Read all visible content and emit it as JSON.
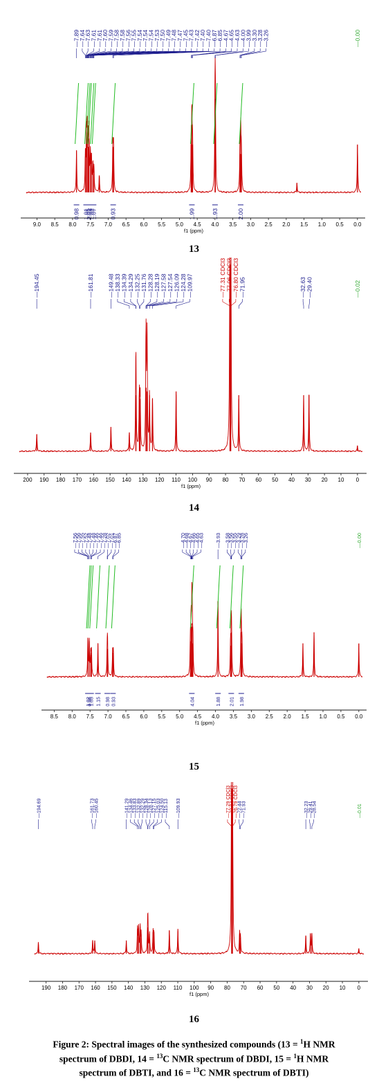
{
  "colors": {
    "spectrum": "#cc0000",
    "integral": "#22bb22",
    "peak_label": "#1a1a8c",
    "solvent_label": "#cc0000",
    "ref_label": "#33aa33",
    "axis": "#1a1a1a"
  },
  "chart_data": [
    {
      "id": "13",
      "type": "line",
      "nucleus": "1H",
      "number_label": "13",
      "xlabel": "f1 (ppm)",
      "xlim": [
        9.3,
        -0.1
      ],
      "xticks": [
        9.0,
        8.5,
        8.0,
        7.5,
        7.0,
        6.5,
        6.0,
        5.5,
        5.0,
        4.5,
        4.0,
        3.5,
        3.0,
        2.5,
        2.0,
        1.5,
        1.0,
        0.5,
        0.0
      ],
      "xtick_labels": [
        "9.0",
        "8.5",
        "8.0",
        "7.5",
        "7.0",
        "6.5",
        "6.0",
        "5.5",
        "5.0",
        "4.5",
        "4.0",
        "3.5",
        "3.0",
        "2.5",
        "2.0",
        "1.5",
        "1.0",
        "0.5",
        "0.0"
      ],
      "peak_labels": [
        "7.89",
        "7.64",
        "7.63",
        "7.61",
        "7.61",
        "7.60",
        "7.59",
        "7.58",
        "7.58",
        "7.56",
        "7.55",
        "7.54",
        "7.54",
        "7.54",
        "7.53",
        "7.50",
        "7.49",
        "7.48",
        "7.47",
        "7.45",
        "7.43",
        "7.42",
        "7.40",
        "7.40",
        "6.87",
        "6.85",
        "4.67",
        "4.65",
        "4.63",
        "4.00",
        "3.99",
        "3.30",
        "3.28",
        "3.26"
      ],
      "ref_label": "0.00",
      "peaks": [
        [
          7.89,
          0.35
        ],
        [
          7.64,
          0.3
        ],
        [
          7.61,
          0.42
        ],
        [
          7.59,
          0.5
        ],
        [
          7.56,
          0.38
        ],
        [
          7.54,
          0.45
        ],
        [
          7.5,
          0.3
        ],
        [
          7.47,
          0.28
        ],
        [
          7.43,
          0.22
        ],
        [
          7.4,
          0.2
        ],
        [
          7.25,
          0.14
        ],
        [
          6.87,
          0.38
        ],
        [
          6.85,
          0.38
        ],
        [
          4.67,
          0.4
        ],
        [
          4.65,
          0.6
        ],
        [
          4.63,
          0.4
        ],
        [
          4.0,
          0.78
        ],
        [
          3.99,
          0.6
        ],
        [
          3.3,
          0.32
        ],
        [
          3.28,
          0.52
        ],
        [
          3.26,
          0.32
        ],
        [
          1.7,
          0.08
        ],
        [
          0.0,
          0.4
        ]
      ],
      "integrals": [
        {
          "label": "0.98",
          "center": 7.89
        },
        {
          "label": "1.01",
          "center": 7.62
        },
        {
          "label": "1.05",
          "center": 7.57
        },
        {
          "label": "2.01",
          "center": 7.53
        },
        {
          "label": "1.02",
          "center": 7.46
        },
        {
          "label": "1.07",
          "center": 7.41
        },
        {
          "label": "0.93",
          "center": 6.86
        },
        {
          "label": "1.99",
          "center": 4.65
        },
        {
          "label": "1.93",
          "center": 4.0
        },
        {
          "label": "2.00",
          "center": 3.28
        }
      ]
    },
    {
      "id": "14",
      "type": "line",
      "nucleus": "13C",
      "number_label": "14",
      "xlabel": "f1 (ppm)",
      "xlim": [
        205,
        -3
      ],
      "xticks": [
        200,
        190,
        180,
        170,
        160,
        150,
        140,
        130,
        120,
        110,
        100,
        90,
        80,
        70,
        60,
        50,
        40,
        30,
        20,
        10,
        0
      ],
      "xtick_labels": [
        "200",
        "190",
        "180",
        "170",
        "160",
        "150",
        "140",
        "130",
        "120",
        "110",
        "100",
        "90",
        "80",
        "70",
        "60",
        "50",
        "40",
        "30",
        "20",
        "10",
        "0"
      ],
      "peak_labels": [
        "194.45",
        "161.81",
        "149.48",
        "138.33",
        "134.39",
        "134.29",
        "132.25",
        "131.76",
        "128.28",
        "128.19",
        "127.58",
        "127.54",
        "126.09",
        "124.28",
        "109.97",
        "77.31 CDCl3",
        "77.06 CDCl3",
        "76.80 CDCl3",
        "71.95",
        "32.63",
        "29.40"
      ],
      "solvent_labels": [
        "77.31 CDCl3",
        "77.06 CDCl3",
        "76.80 CDCl3"
      ],
      "ref_label": "0.02",
      "peaks": [
        [
          194.45,
          0.09
        ],
        [
          161.81,
          0.1
        ],
        [
          149.48,
          0.13
        ],
        [
          138.33,
          0.1
        ],
        [
          134.39,
          0.3
        ],
        [
          134.29,
          0.28
        ],
        [
          132.25,
          0.3
        ],
        [
          131.76,
          0.28
        ],
        [
          128.28,
          0.33
        ],
        [
          128.19,
          0.34
        ],
        [
          127.58,
          0.32
        ],
        [
          127.54,
          0.3
        ],
        [
          126.09,
          0.3
        ],
        [
          124.28,
          0.28
        ],
        [
          109.97,
          0.32
        ],
        [
          77.31,
          0.95
        ],
        [
          77.06,
          1.0
        ],
        [
          76.8,
          0.92
        ],
        [
          71.95,
          0.3
        ],
        [
          32.63,
          0.3
        ],
        [
          29.4,
          0.3
        ],
        [
          0.0,
          0.03
        ]
      ]
    },
    {
      "id": "15",
      "type": "line",
      "nucleus": "1H",
      "number_label": "15",
      "xlabel": "f1 (ppm)",
      "xlim": [
        8.7,
        -0.1
      ],
      "xticks": [
        8.5,
        8.0,
        7.5,
        7.0,
        6.5,
        6.0,
        5.5,
        5.0,
        4.5,
        4.0,
        3.5,
        3.0,
        2.5,
        2.0,
        1.5,
        1.0,
        0.5,
        0.0
      ],
      "xtick_labels": [
        "8.5",
        "8.0",
        "7.5",
        "7.0",
        "6.5",
        "6.0",
        "5.5",
        "5.0",
        "4.5",
        "4.0",
        "3.5",
        "3.0",
        "2.5",
        "2.0",
        "1.5",
        "1.0",
        "0.5",
        "0.0"
      ],
      "peak_labels": [
        "7.56",
        "7.56",
        "7.55",
        "7.52",
        "7.48",
        "7.48",
        "7.46",
        "7.46",
        "7.28",
        "7.02",
        "7.01",
        "6.87",
        "6.85",
        "4.70",
        "4.68",
        "4.67",
        "4.66",
        "4.65",
        "4.63",
        "3.93",
        "3.58",
        "3.56",
        "3.55",
        "3.29",
        "3.28",
        "3.26"
      ],
      "ref_label": "0.00",
      "peaks": [
        [
          7.56,
          0.35
        ],
        [
          7.52,
          0.32
        ],
        [
          7.48,
          0.2
        ],
        [
          7.46,
          0.22
        ],
        [
          7.28,
          0.3
        ],
        [
          7.02,
          0.25
        ],
        [
          7.01,
          0.25
        ],
        [
          6.87,
          0.22
        ],
        [
          6.85,
          0.22
        ],
        [
          4.7,
          0.32
        ],
        [
          4.68,
          0.45
        ],
        [
          4.66,
          0.48
        ],
        [
          4.65,
          0.45
        ],
        [
          4.63,
          0.3
        ],
        [
          3.93,
          0.68
        ],
        [
          3.58,
          0.28
        ],
        [
          3.56,
          0.4
        ],
        [
          3.55,
          0.28
        ],
        [
          3.29,
          0.3
        ],
        [
          3.28,
          0.4
        ],
        [
          3.26,
          0.3
        ],
        [
          1.56,
          0.3
        ],
        [
          1.25,
          0.4
        ],
        [
          0.0,
          0.3
        ]
      ],
      "integrals": [
        {
          "label": "1.02",
          "center": 7.56
        },
        {
          "label": "0.96",
          "center": 7.52
        },
        {
          "label": "1.05",
          "center": 7.47
        },
        {
          "label": "1.15",
          "center": 7.28
        },
        {
          "label": "0.98",
          "center": 7.02
        },
        {
          "label": "0.93",
          "center": 6.86
        },
        {
          "label": "4.04",
          "center": 4.66
        },
        {
          "label": "1.88",
          "center": 3.93
        },
        {
          "label": "2.01",
          "center": 3.56
        },
        {
          "label": "1.98",
          "center": 3.28
        }
      ]
    },
    {
      "id": "16",
      "type": "line",
      "nucleus": "13C",
      "number_label": "16",
      "xlabel": "f1 (ppm)",
      "xlim": [
        197,
        -3
      ],
      "xticks": [
        190,
        180,
        170,
        160,
        150,
        140,
        130,
        120,
        110,
        100,
        90,
        80,
        70,
        60,
        50,
        40,
        30,
        20,
        10,
        0
      ],
      "xtick_labels": [
        "190",
        "180",
        "170",
        "160",
        "150",
        "140",
        "130",
        "120",
        "110",
        "100",
        "90",
        "80",
        "70",
        "60",
        "50",
        "40",
        "30",
        "20",
        "10",
        "0"
      ],
      "peak_labels": [
        "194.69",
        "161.73",
        "160.45",
        "141.29",
        "134.46",
        "133.83",
        "132.89",
        "132.29",
        "128.34",
        "128.13",
        "127.15",
        "125.03",
        "124.50",
        "115.13",
        "109.93",
        "77.29 CDCl3",
        "77.04 CDCl3",
        "76.79 CDCl3",
        "72.44",
        "71.93",
        "32.23",
        "29.41",
        "28.54"
      ],
      "solvent_labels": [
        "77.29 CDCl3",
        "77.04 CDCl3",
        "76.79 CDCl3"
      ],
      "ref_label": "0.01",
      "peaks": [
        [
          194.69,
          0.07
        ],
        [
          161.73,
          0.08
        ],
        [
          160.45,
          0.08
        ],
        [
          141.29,
          0.08
        ],
        [
          134.46,
          0.15
        ],
        [
          133.83,
          0.15
        ],
        [
          132.89,
          0.16
        ],
        [
          132.29,
          0.12
        ],
        [
          128.34,
          0.14
        ],
        [
          128.13,
          0.16
        ],
        [
          127.15,
          0.12
        ],
        [
          125.03,
          0.13
        ],
        [
          124.5,
          0.13
        ],
        [
          115.13,
          0.14
        ],
        [
          109.93,
          0.15
        ],
        [
          77.29,
          0.94
        ],
        [
          77.04,
          1.0
        ],
        [
          76.79,
          0.93
        ],
        [
          72.44,
          0.12
        ],
        [
          71.93,
          0.1
        ],
        [
          32.23,
          0.11
        ],
        [
          29.41,
          0.12
        ],
        [
          28.54,
          0.12
        ],
        [
          0.0,
          0.03
        ]
      ]
    }
  ],
  "caption": {
    "line1_a": "Figure 2: Spectral images of the synthesized compounds (13 = ",
    "sup1": "1",
    "line1_b": "H NMR",
    "line2_a": "spectrum of DBDI, 14 = ",
    "sup2": "13",
    "line2_b": "C NMR spectrum of DBDI, 15 = ",
    "sup3": "1",
    "line2_c": "H NMR",
    "line3_a": "spectrum of DBTI, and 16 = ",
    "sup4": "13",
    "line3_b": "C NMR spectrum of DBTI)"
  }
}
